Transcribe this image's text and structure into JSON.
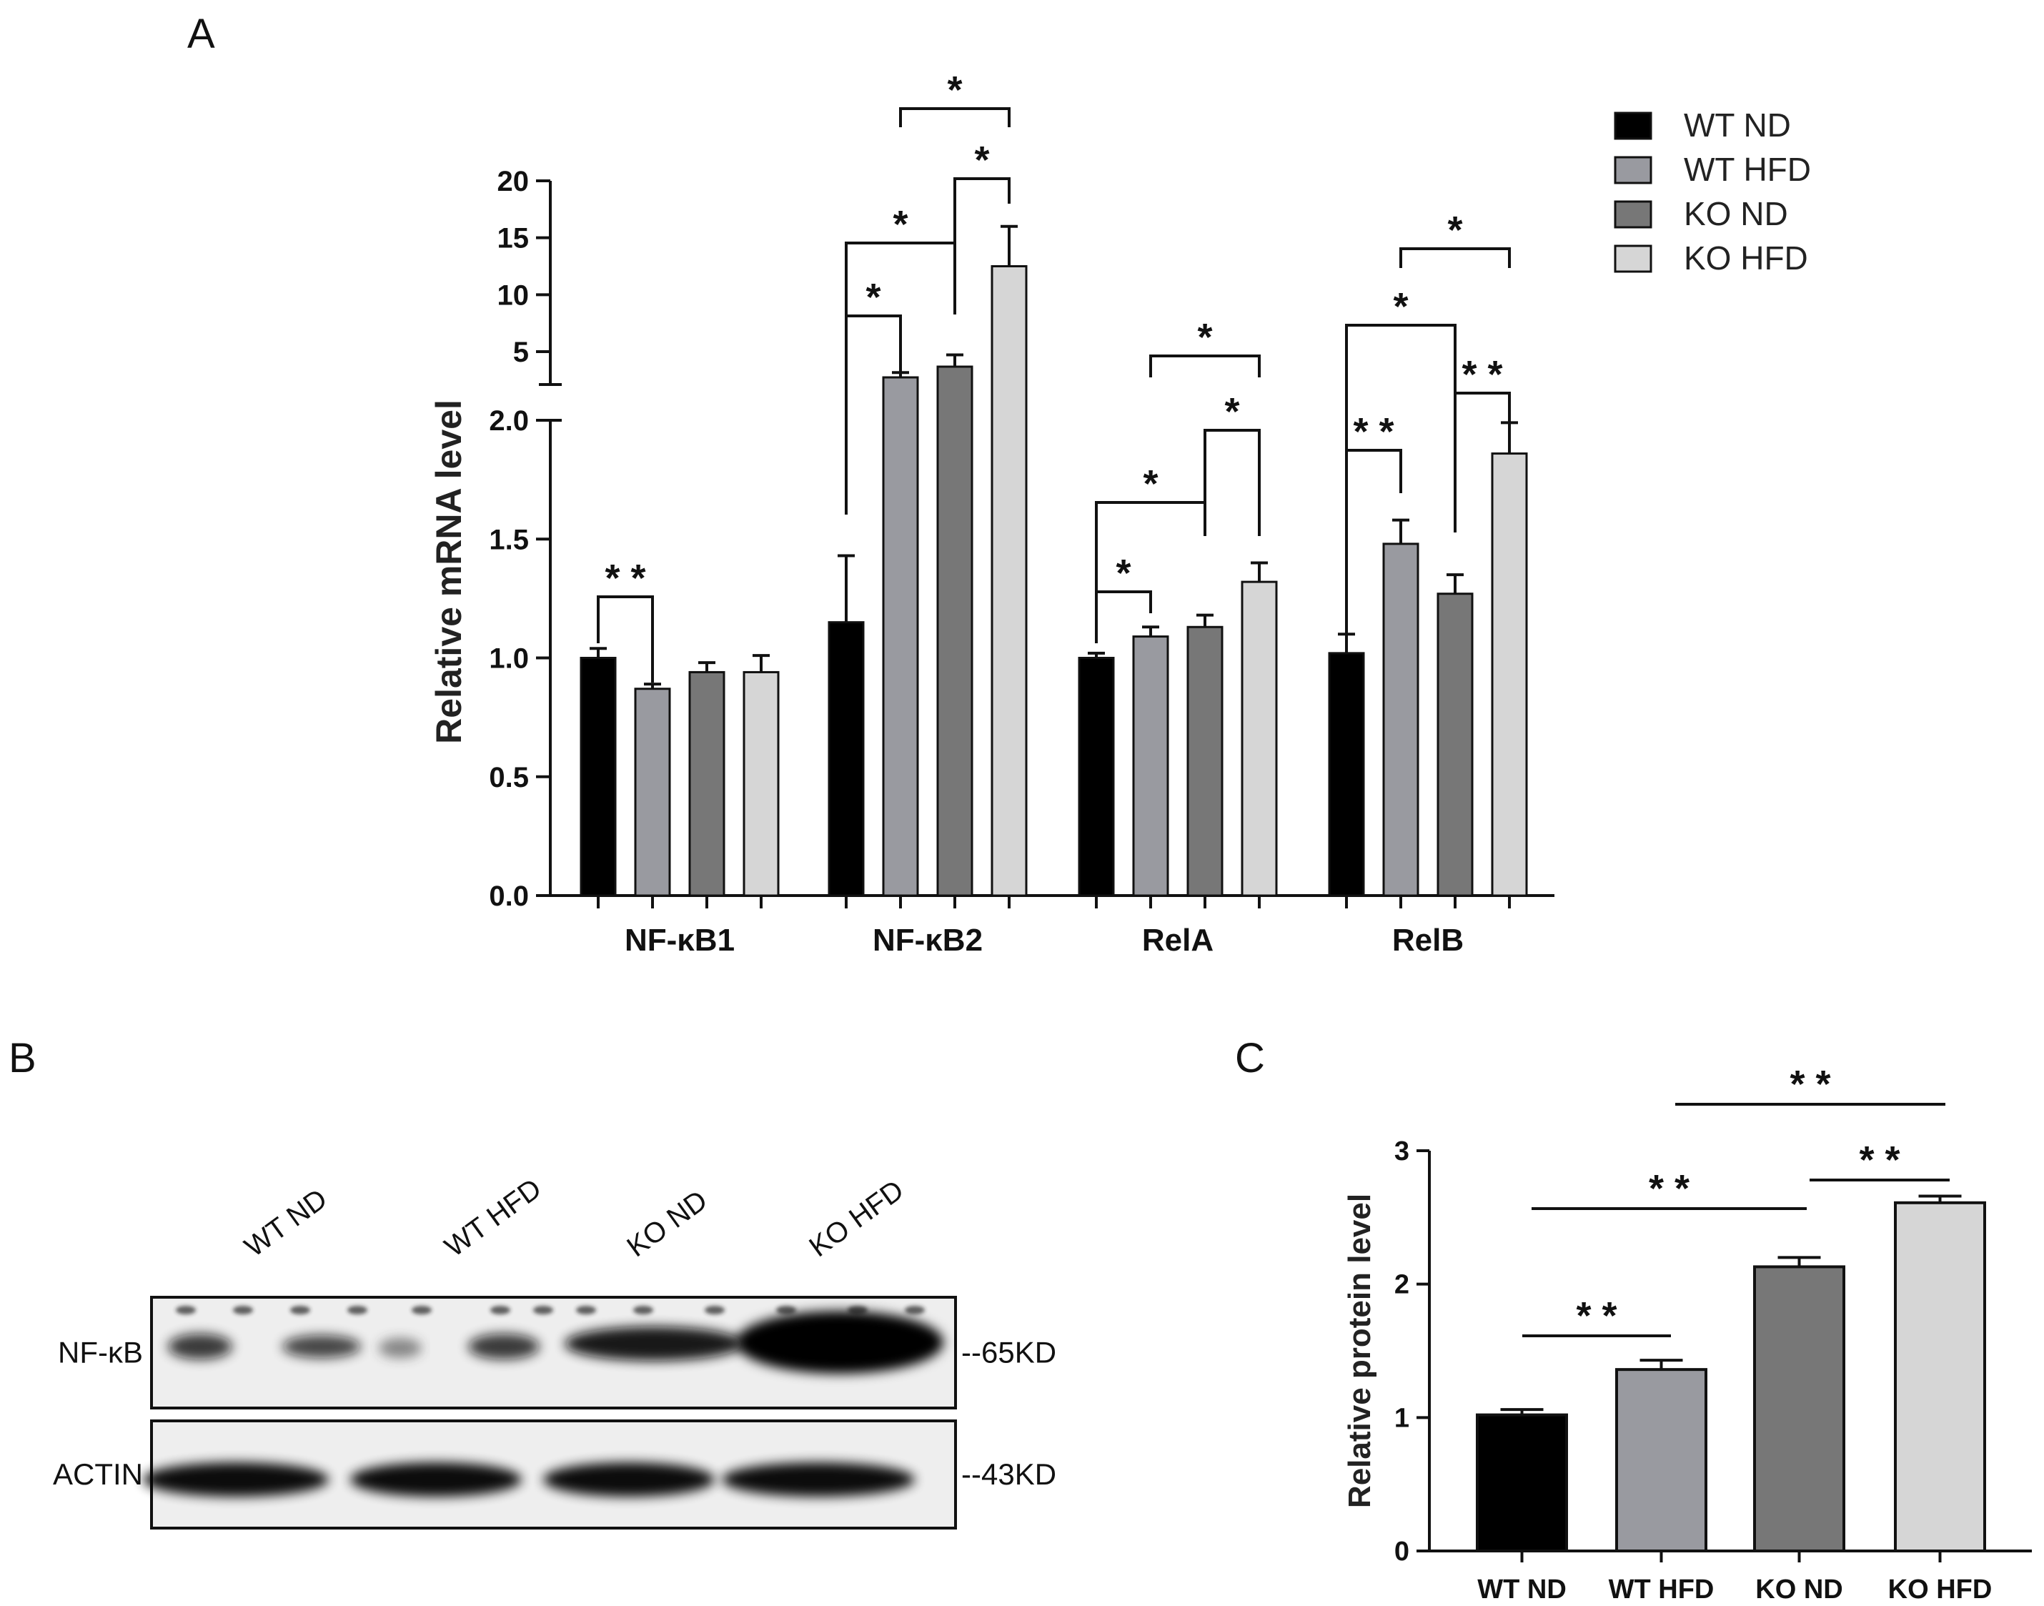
{
  "panels": {
    "A": {
      "letter": "A",
      "chart_data": {
        "type": "bar",
        "ylabel": "Relative mRNA level",
        "categories": [
          "NF-κB1",
          "NF-κB2",
          "RelA",
          "RelB"
        ],
        "series": [
          {
            "name": "WT ND",
            "color": "#000000",
            "values": [
              1.0,
              1.15,
              1.0,
              1.02
            ],
            "errors": [
              0.04,
              0.28,
              0.02,
              0.08
            ]
          },
          {
            "name": "WT HFD",
            "color": "#999aa0",
            "values": [
              0.87,
              2.6,
              1.09,
              1.48
            ],
            "errors": [
              0.02,
              0.45,
              0.04,
              0.1
            ]
          },
          {
            "name": "KO ND",
            "color": "#777777",
            "values": [
              0.94,
              3.6,
              1.13,
              1.27
            ],
            "errors": [
              0.04,
              1.1,
              0.05,
              0.08
            ]
          },
          {
            "name": "KO HFD",
            "color": "#d6d6d6",
            "values": [
              0.94,
              12.5,
              1.32,
              1.86
            ],
            "errors": [
              0.07,
              3.5,
              0.08,
              0.13
            ]
          }
        ],
        "yaxis_lower": {
          "range": [
            0,
            2.0
          ],
          "ticks": [
            "0.0",
            "0.5",
            "1.0",
            "1.5",
            "2.0"
          ]
        },
        "yaxis_upper": {
          "range": [
            2.0,
            20
          ],
          "ticks": [
            "5",
            "10",
            "15",
            "20"
          ]
        },
        "significance": [
          "* *",
          "*",
          "*",
          "*",
          "*",
          "*",
          "*",
          "*",
          "*",
          "* *",
          "*",
          "* *",
          "*"
        ]
      }
    },
    "B": {
      "letter": "B",
      "lanes": [
        "WT ND",
        "WT HFD",
        "KO ND",
        "KO HFD"
      ],
      "rows": [
        {
          "label": "NF-κB",
          "size": "--65KD",
          "intensities": [
            0.35,
            0.35,
            0.8,
            1.0
          ]
        },
        {
          "label": "ACTIN",
          "size": "--43KD",
          "intensities": [
            0.9,
            0.9,
            0.9,
            0.95
          ]
        }
      ]
    },
    "C": {
      "letter": "C",
      "chart_data": {
        "type": "bar",
        "ylabel": "Relative protein level",
        "categories": [
          "WT ND",
          "WT HFD",
          "KO ND",
          "KO HFD"
        ],
        "colors": [
          "#000000",
          "#999aa0",
          "#777777",
          "#d6d6d6"
        ],
        "values": [
          1.02,
          1.36,
          2.13,
          2.61
        ],
        "errors": [
          0.04,
          0.07,
          0.07,
          0.05
        ],
        "ylim": [
          0,
          3
        ],
        "ticks": [
          "0",
          "1",
          "2",
          "3"
        ],
        "significance": [
          "* *",
          "* *",
          "* *",
          "* *"
        ]
      }
    }
  }
}
